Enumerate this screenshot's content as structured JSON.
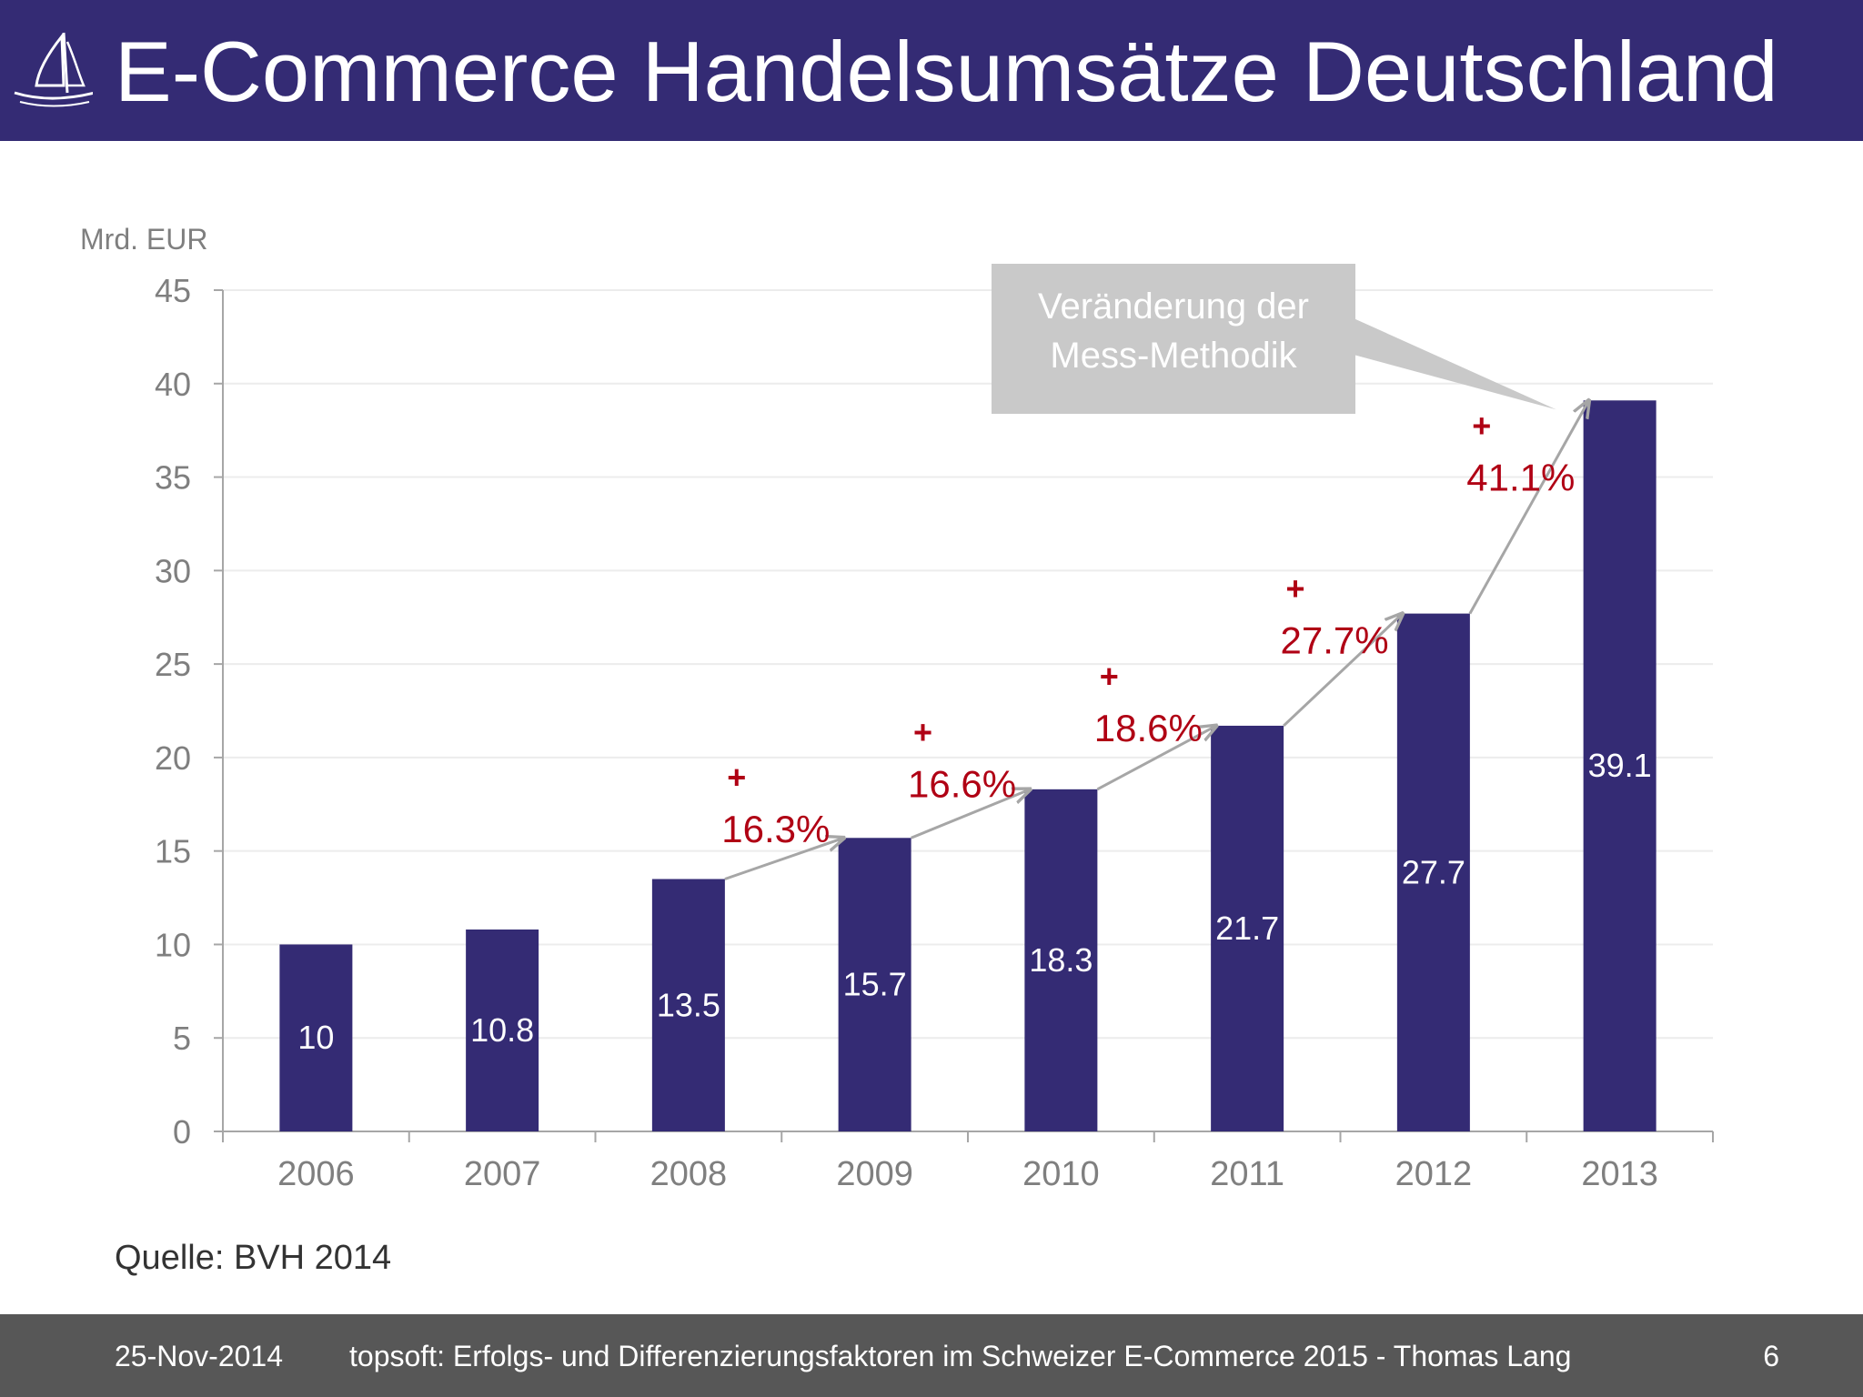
{
  "header": {
    "title": "E-Commerce Handelsumsätze Deutschland"
  },
  "source": "Quelle: BVH 2014",
  "footer": {
    "date": "25-Nov-2014",
    "text": "topsoft: Erfolgs- und Differenzierungsfaktoren im Schweizer E-Commerce 2015 - Thomas Lang",
    "page": "6"
  },
  "callout": {
    "line1": "Veränderung der",
    "line2": "Mess-Methodik"
  },
  "colors": {
    "header": "#342b74",
    "bar": "#342b74",
    "growth": "#b00014",
    "callout": "#c9c9c9",
    "footer": "#575757"
  },
  "chart_data": {
    "type": "bar",
    "ylabel": "Mrd. EUR",
    "ylim": [
      0,
      45
    ],
    "yticks": [
      0,
      5,
      10,
      15,
      20,
      25,
      30,
      35,
      40,
      45
    ],
    "categories": [
      "2006",
      "2007",
      "2008",
      "2009",
      "2010",
      "2011",
      "2012",
      "2013"
    ],
    "values": [
      10,
      10.8,
      13.5,
      15.7,
      18.3,
      21.7,
      27.7,
      39.1
    ],
    "value_labels": [
      "10",
      "10.8",
      "13.5",
      "15.7",
      "18.3",
      "21.7",
      "27.7",
      "39.1"
    ],
    "growth_labels": [
      {
        "year": "2009",
        "text": "16.3%"
      },
      {
        "year": "2010",
        "text": "16.6%"
      },
      {
        "year": "2011",
        "text": "18.6%"
      },
      {
        "year": "2012",
        "text": "27.7%"
      },
      {
        "year": "2013",
        "text": "41.1%"
      }
    ],
    "grid": true
  }
}
